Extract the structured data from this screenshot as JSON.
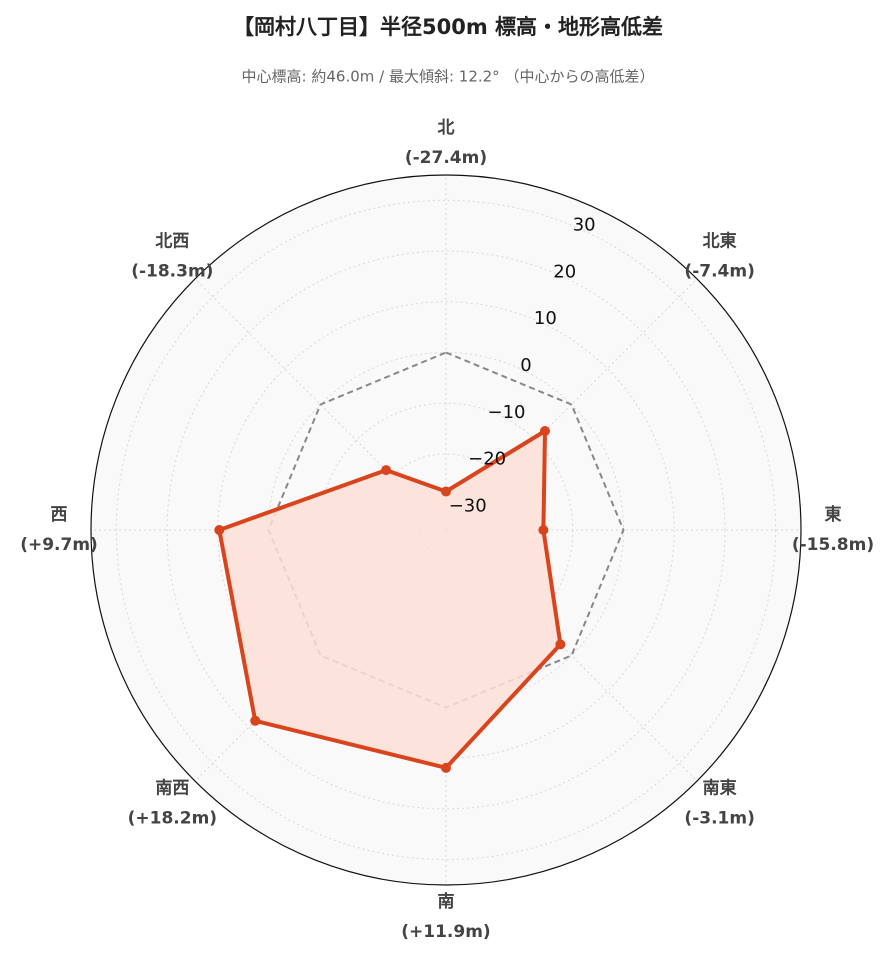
{
  "chart_data": {
    "type": "radar",
    "title": "【岡村八丁目】半径500m 標高・地形高低差",
    "subtitle": "中心標高: 約46.0m / 最大傾斜: 12.2° （中心からの高低差）",
    "categories": [
      "北",
      "北東",
      "東",
      "南東",
      "南",
      "南西",
      "西",
      "北西"
    ],
    "series": [
      {
        "color": "#d9441c",
        "fill": "#fde0d8",
        "values": [
          -27.4,
          -7.4,
          -15.8,
          -3.1,
          11.9,
          18.2,
          9.7,
          -18.3
        ],
        "value_labels": [
          "(-27.4m)",
          "(-7.4m)",
          "(-15.8m)",
          "(-3.1m)",
          "(+11.9m)",
          "(+18.2m)",
          "(+9.7m)",
          "(-18.3m)"
        ]
      },
      {
        "color": "#888888",
        "dash": true,
        "values": [
          0,
          0,
          0,
          0,
          0,
          0,
          0,
          0
        ]
      }
    ],
    "rlim": [
      -35,
      35
    ],
    "rticks": [
      {
        "value": -30,
        "label": "−30"
      },
      {
        "value": -20,
        "label": "−20"
      },
      {
        "value": -10,
        "label": "−10"
      },
      0,
      10,
      20,
      30
    ],
    "grid": true
  }
}
